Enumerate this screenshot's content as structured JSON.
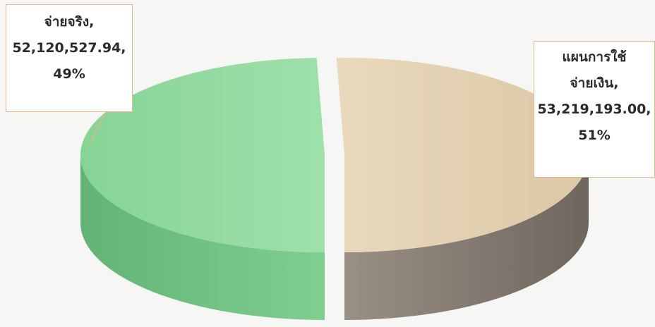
{
  "chart_data": {
    "type": "pie",
    "style": "3d-exploded",
    "slices": [
      {
        "label_line1": "จ่ายจริง,",
        "value_text": "52,120,527.94,",
        "percent_text": "49%",
        "value": 52120527.94,
        "percent": 49,
        "color_top": "#93dca0",
        "color_side": "#6fbf82"
      },
      {
        "label_line1": "แผนการใช้",
        "label_line2": "จ่ายเงิน,",
        "value_text": "53,219,193.00,",
        "percent_text": "51%",
        "value": 53219193.0,
        "percent": 51,
        "color_top": "#e6d3b5",
        "color_side": "#8f8478"
      }
    ],
    "callout_border_color": "#e2b48e"
  }
}
